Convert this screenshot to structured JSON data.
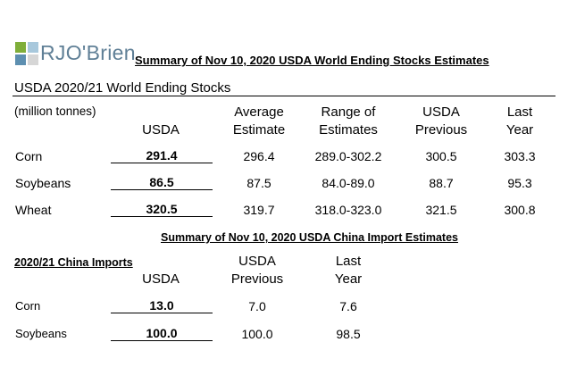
{
  "logo": {
    "text": "RJO'Brien",
    "icon": "rjo-brien-logo-mark"
  },
  "world": {
    "title": "Summary of Nov 10, 2020 USDA World Ending Stocks Estimates",
    "section_label": "USDA 2020/21 World Ending Stocks",
    "units": "(million tonnes)",
    "columns": [
      {
        "line1": "",
        "line2": "USDA"
      },
      {
        "line1": "Average",
        "line2": "Estimate"
      },
      {
        "line1": "Range of",
        "line2": "Estimates"
      },
      {
        "line1": "USDA",
        "line2": "Previous"
      },
      {
        "line1": "Last",
        "line2": "Year"
      }
    ],
    "rows": [
      {
        "label": "Corn",
        "usda": "291.4",
        "average": "296.4",
        "range": "289.0-302.2",
        "previous": "300.5",
        "last_year": "303.3"
      },
      {
        "label": "Soybeans",
        "usda": "86.5",
        "average": "87.5",
        "range": "84.0-89.0",
        "previous": "88.7",
        "last_year": "95.3"
      },
      {
        "label": "Wheat",
        "usda": "320.5",
        "average": "319.7",
        "range": "318.0-323.0",
        "previous": "321.5",
        "last_year": "300.8"
      }
    ]
  },
  "china": {
    "title": "Summary of Nov 10, 2020 USDA China Import Estimates",
    "section_label": "2020/21 China Imports",
    "columns": [
      {
        "line1": "",
        "line2": "USDA"
      },
      {
        "line1": "USDA",
        "line2": "Previous"
      },
      {
        "line1": "Last",
        "line2": "Year"
      }
    ],
    "rows": [
      {
        "label": "Corn",
        "usda": "13.0",
        "previous": "7.0",
        "last_year": "7.6"
      },
      {
        "label": "Soybeans",
        "usda": "100.0",
        "previous": "100.0",
        "last_year": "98.5"
      }
    ]
  }
}
